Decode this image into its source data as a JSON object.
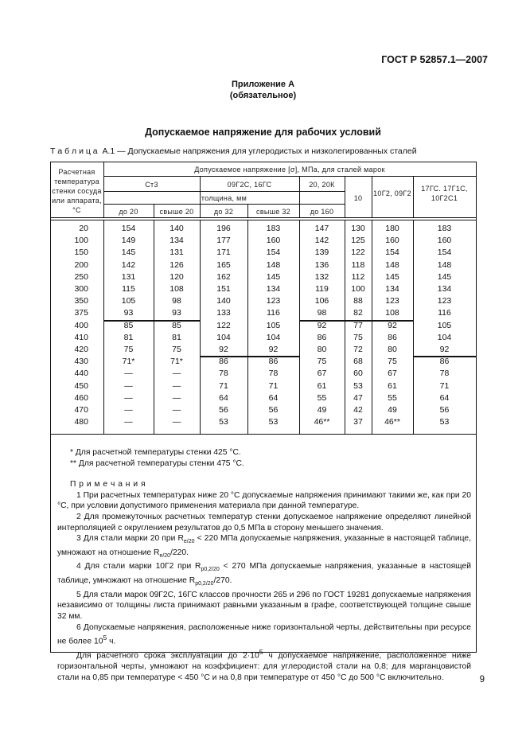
{
  "header": {
    "doc_code": "ГОСТ Р 52857.1—2007"
  },
  "appendix": {
    "title": "Приложение А",
    "status": "(обязательное)"
  },
  "section_title": "Допускаемое напряжение для рабочих условий",
  "table": {
    "caption": "Т а б л и ц а  А.1 — Допускаемые напряжения для углеродистых и низколегированных сталей",
    "col_temp_header": [
      "Расчетная",
      "температура",
      "стенки сосуда",
      "или аппарата,",
      "°С"
    ],
    "stress_header": "Допускаемое напряжение [σ], МПа, для сталей марок",
    "grades": [
      "Ст3",
      "09Г2С, 16ГС",
      "20, 20К",
      "10",
      "10Г2, 09Г2",
      "17ГС. 17Г1С, 10Г2С1"
    ],
    "thickness_header": "толщина, мм",
    "thickness": [
      "до 20",
      "свыше 20",
      "до 32",
      "свыше 32",
      "до 160"
    ],
    "rows": [
      [
        "20",
        "154",
        "140",
        "196",
        "183",
        "147",
        "130",
        "180",
        "183"
      ],
      [
        "100",
        "149",
        "134",
        "177",
        "160",
        "142",
        "125",
        "160",
        "160"
      ],
      [
        "150",
        "145",
        "131",
        "171",
        "154",
        "139",
        "122",
        "154",
        "154"
      ],
      [
        "200",
        "142",
        "126",
        "165",
        "148",
        "136",
        "118",
        "148",
        "148"
      ],
      [
        "250",
        "131",
        "120",
        "162",
        "145",
        "132",
        "112",
        "145",
        "145"
      ],
      [
        "300",
        "115",
        "108",
        "151",
        "134",
        "119",
        "100",
        "134",
        "134"
      ],
      [
        "350",
        "105",
        "98",
        "140",
        "123",
        "106",
        "88",
        "123",
        "123"
      ],
      [
        "375",
        "93",
        "93",
        "133",
        "116",
        "98",
        "82",
        "108",
        "116"
      ],
      [
        "400",
        "85",
        "85",
        "122",
        "105",
        "92",
        "77",
        "92",
        "105"
      ],
      [
        "410",
        "81",
        "81",
        "104",
        "104",
        "86",
        "75",
        "86",
        "104"
      ],
      [
        "420",
        "75",
        "75",
        "92",
        "92",
        "80",
        "72",
        "80",
        "92"
      ],
      [
        "430",
        "71*",
        "71*",
        "86",
        "86",
        "75",
        "68",
        "75",
        "86"
      ],
      [
        "440",
        "—",
        "—",
        "78",
        "78",
        "67",
        "60",
        "67",
        "78"
      ],
      [
        "450",
        "—",
        "—",
        "71",
        "71",
        "61",
        "53",
        "61",
        "71"
      ],
      [
        "460",
        "—",
        "—",
        "64",
        "64",
        "55",
        "47",
        "55",
        "64"
      ],
      [
        "470",
        "—",
        "—",
        "56",
        "56",
        "49",
        "42",
        "49",
        "56"
      ],
      [
        "480",
        "—",
        "—",
        "53",
        "53",
        "46**",
        "37",
        "46**",
        "53"
      ]
    ]
  },
  "footnotes": [
    "* Для расчетной температуры стенки 425 °С.",
    "** Для расчетной температуры стенки 475 °С."
  ],
  "notes": {
    "title": "П р и м е ч а н и я",
    "n1": "1 При расчетных температурах ниже 20 °С допускаемые напряжения принимают такими же, как при 20 °С, при условии допустимого применения материала при данной температуре.",
    "n2": "2 Для промежуточных расчетных температур стенки допускаемое напряжение определяют линейной интерполяцией с округлением результатов до 0,5 МПа в сторону меньшего значения.",
    "n3a": "3 Для стали марки 20 при R",
    "n3sub": "e/20",
    "n3b": " < 220 МПа допускаемые напряжения, указанные в настоящей таблице, умножают на отношение R",
    "n3c": "/220.",
    "n4a": "4 Для стали марки 10Г2 при R",
    "n4sub": "p0,2/20",
    "n4b": " < 270 МПа допускаемые напряжения, указанные в настоящей таблице, умножают на отношение R",
    "n4c": "/270.",
    "n5": "5 Для стали марок 09Г2С, 16ГС классов прочности 265 и 296 по ГОСТ 19281 допускаемые напряжения независимо от толщины листа принимают равными указанным в графе, соответствующей толщине свыше 32 мм.",
    "n6a": "6 Допускаемые напряжения, расположенные ниже горизонтальной черты, действительны при ресурсе не более 10",
    "n6sup": "5",
    "n6b": " ч.",
    "n7a": "Для расчетного срока эксплуатации до 2·10",
    "n7sup": "5",
    "n7b": " ч допускаемое напряжение, расположенное ниже горизонтальной черты, умножают на коэффициент: для углеродистой стали на 0,8; для марганцовистой стали на 0,85 при температуре < 450 °С и на 0,8 при температуре от 450 °С до 500 °С включительно."
  },
  "page_number": "9"
}
